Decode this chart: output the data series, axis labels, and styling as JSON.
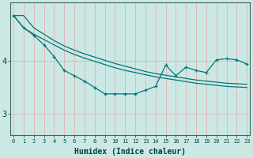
{
  "xlabel": "Humidex (Indice chaleur)",
  "background_color": "#cce8e4",
  "grid_color": "#e8a8a8",
  "line_color": "#007878",
  "x": [
    0,
    1,
    2,
    3,
    4,
    5,
    6,
    7,
    8,
    9,
    10,
    11,
    12,
    13,
    14,
    15,
    16,
    17,
    18,
    19,
    20,
    21,
    22,
    23
  ],
  "line1": [
    4.85,
    4.85,
    4.62,
    4.5,
    4.38,
    4.28,
    4.2,
    4.13,
    4.07,
    4.01,
    3.95,
    3.9,
    3.85,
    3.8,
    3.76,
    3.73,
    3.7,
    3.67,
    3.64,
    3.62,
    3.6,
    3.58,
    3.57,
    3.56
  ],
  "line2": [
    4.85,
    4.62,
    4.5,
    4.4,
    4.3,
    4.2,
    4.12,
    4.05,
    3.99,
    3.93,
    3.87,
    3.82,
    3.78,
    3.74,
    3.7,
    3.67,
    3.64,
    3.61,
    3.58,
    3.56,
    3.54,
    3.52,
    3.51,
    3.5
  ],
  "line3": [
    4.85,
    4.62,
    4.48,
    4.3,
    4.08,
    3.82,
    3.72,
    3.62,
    3.5,
    3.38,
    3.38,
    3.38,
    3.38,
    3.45,
    3.52,
    3.92,
    3.72,
    3.88,
    3.82,
    3.78,
    4.02,
    4.04,
    4.02,
    3.94
  ],
  "ylim_min": 2.6,
  "ylim_max": 5.1,
  "yticks": [
    3,
    4
  ],
  "xlim_min": -0.3,
  "xlim_max": 23.3
}
